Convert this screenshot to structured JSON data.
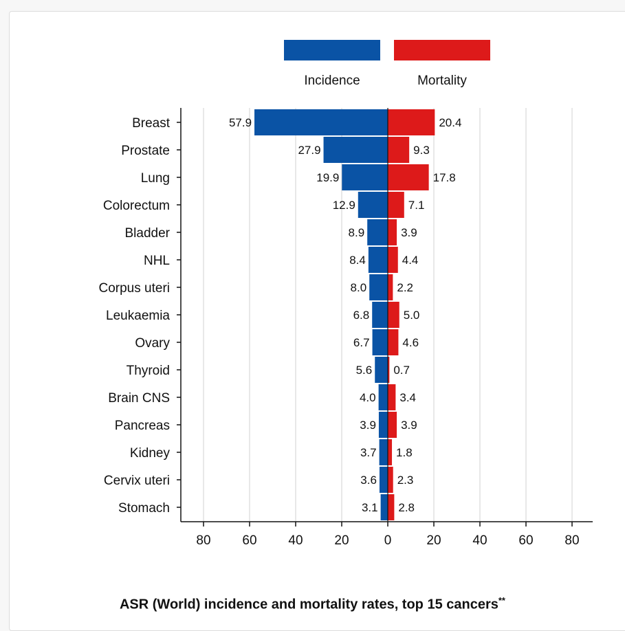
{
  "chart_data": {
    "type": "bar",
    "orientation": "horizontal-butterfly",
    "title": "ASR (World) incidence and mortality rates, top 15 cancers",
    "title_marker": "**",
    "categories": [
      "Breast",
      "Prostate",
      "Lung",
      "Colorectum",
      "Bladder",
      "NHL",
      "Corpus uteri",
      "Leukaemia",
      "Ovary",
      "Thyroid",
      "Brain CNS",
      "Pancreas",
      "Kidney",
      "Cervix uteri",
      "Stomach"
    ],
    "series": [
      {
        "name": "Incidence",
        "color": "#0a53a5",
        "side": "left",
        "values": [
          57.9,
          27.9,
          19.9,
          12.9,
          8.9,
          8.4,
          8.0,
          6.8,
          6.7,
          5.6,
          4.0,
          3.9,
          3.7,
          3.6,
          3.1
        ],
        "labels": [
          "57.9",
          "27.9",
          "19.9",
          "12.9",
          "8.9",
          "8.4",
          "8.0",
          "6.8",
          "6.7",
          "5.6",
          "4.0",
          "3.9",
          "3.7",
          "3.6",
          "3.1"
        ]
      },
      {
        "name": "Mortality",
        "color": "#dd1a1a",
        "side": "right",
        "values": [
          20.4,
          9.3,
          17.8,
          7.1,
          3.9,
          4.4,
          2.2,
          5.0,
          4.6,
          0.7,
          3.4,
          3.9,
          1.8,
          2.3,
          2.8
        ],
        "labels": [
          "20.4",
          "9.3",
          "17.8",
          "7.1",
          "3.9",
          "4.4",
          "2.2",
          "5.0",
          "4.6",
          "0.7",
          "3.4",
          "3.9",
          "1.8",
          "2.3",
          "2.8"
        ]
      }
    ],
    "xlim": [
      -80,
      80
    ],
    "xticks": [
      -80,
      -60,
      -40,
      -20,
      0,
      20,
      40,
      60,
      80
    ],
    "xtick_labels": [
      "80",
      "60",
      "40",
      "20",
      "0",
      "20",
      "40",
      "60",
      "80"
    ],
    "grid": "vertical",
    "legend_position": "top"
  }
}
